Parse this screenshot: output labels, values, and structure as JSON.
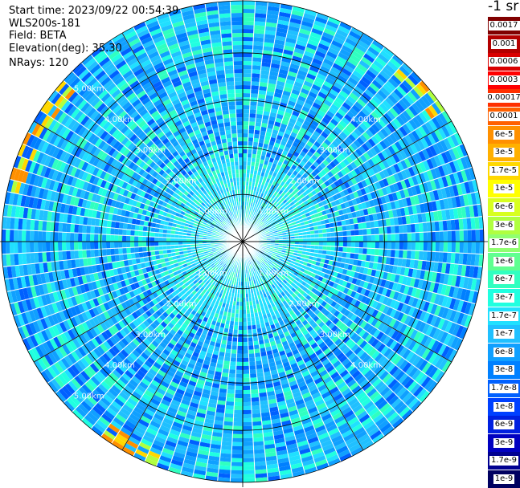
{
  "info": {
    "start_time": "Start time: 2023/09/22 00:54:39",
    "device": "WLS200s-181",
    "field": "Field: BETA",
    "elevation": "Elevation(deg): 35.30",
    "nrays": "NRays: 120"
  },
  "colorbar": {
    "title": "-1 sr",
    "entries": [
      {
        "label": "0.0017",
        "color": "#800000"
      },
      {
        "label": "0.001",
        "color": "#b30000"
      },
      {
        "label": "0.0006",
        "color": "#d90000"
      },
      {
        "label": "0.0003",
        "color": "#ff0000"
      },
      {
        "label": "0.00017",
        "color": "#ff3000"
      },
      {
        "label": "0.0001",
        "color": "#ff6000"
      },
      {
        "label": "6e-5",
        "color": "#ff9000"
      },
      {
        "label": "3e-5",
        "color": "#ffb000"
      },
      {
        "label": "1.7e-5",
        "color": "#ffd800"
      },
      {
        "label": "1e-5",
        "color": "#ffff00"
      },
      {
        "label": "6e-6",
        "color": "#d8ff20"
      },
      {
        "label": "3e-6",
        "color": "#b0ff40"
      },
      {
        "label": "1.7e-6",
        "color": "#90ff70"
      },
      {
        "label": "1e-6",
        "color": "#60ff90"
      },
      {
        "label": "6e-7",
        "color": "#30ffc0"
      },
      {
        "label": "3e-7",
        "color": "#20ffe0"
      },
      {
        "label": "1.7e-7",
        "color": "#20e0ff"
      },
      {
        "label": "1e-7",
        "color": "#20c0ff"
      },
      {
        "label": "6e-8",
        "color": "#10a0ff"
      },
      {
        "label": "3e-8",
        "color": "#0080ff"
      },
      {
        "label": "1.7e-8",
        "color": "#0060ff"
      },
      {
        "label": "1e-8",
        "color": "#0040ff"
      },
      {
        "label": "6e-9",
        "color": "#0020e0"
      },
      {
        "label": "3e-9",
        "color": "#0000c0"
      },
      {
        "label": "1.7e-9",
        "color": "#000090"
      },
      {
        "label": "1e-9",
        "color": "#000060"
      }
    ]
  },
  "chart_data": {
    "type": "heatmap",
    "projection": "polar (PPI scan)",
    "n_rays": 120,
    "range_rings_km": [
      1,
      2,
      3,
      4,
      5
    ],
    "ring_labels": [
      "1.00km",
      "2.00km",
      "3.00km",
      "4.00km",
      "5.00km"
    ],
    "max_range_km": 5,
    "colorscale": "log",
    "value_range": [
      1e-09,
      0.0017
    ],
    "spokes_deg": [
      0,
      30,
      60,
      90,
      120,
      150,
      180,
      210,
      240,
      270,
      300,
      330
    ],
    "dominant_values": "mostly 3e-8 to 3e-7; occasional 1e-9 to 1e-8 near center; edge values up to 1e-4 at outer ranges, west-northwest and south-southwest",
    "grid": true
  }
}
